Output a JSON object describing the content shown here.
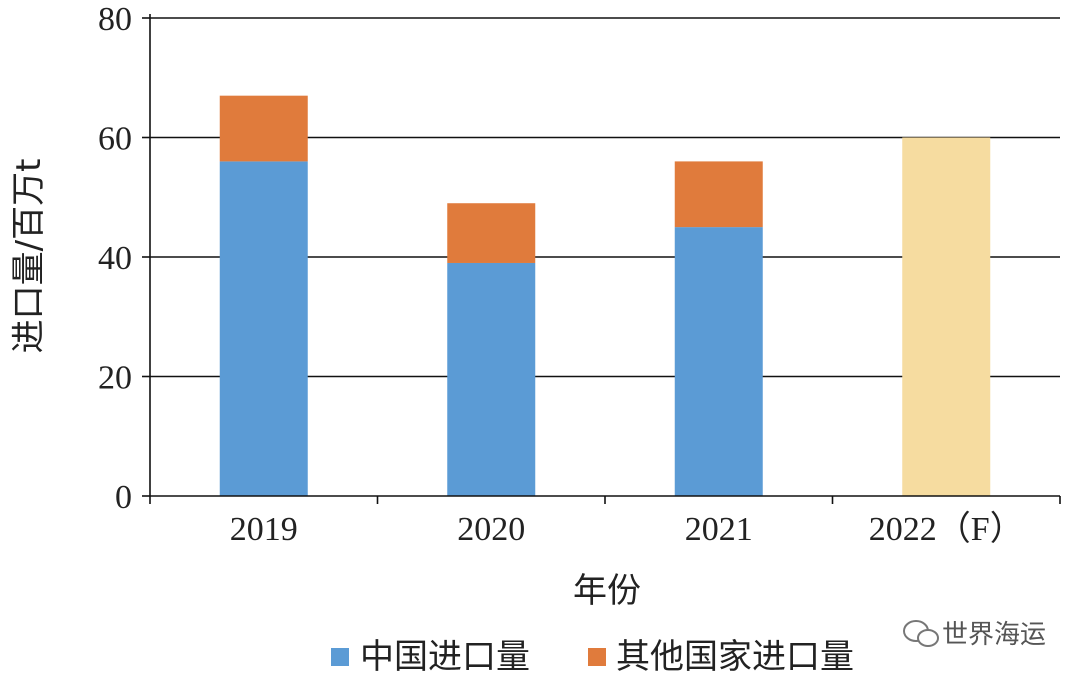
{
  "chart_data": {
    "type": "bar",
    "stacked": true,
    "categories": [
      "2019",
      "2020",
      "2021",
      "2022（F）"
    ],
    "series": [
      {
        "name": "中国进口量",
        "values": [
          56,
          39,
          45,
          null
        ],
        "color": "#5b9bd5"
      },
      {
        "name": "其他国家进口量",
        "values": [
          11,
          10,
          11,
          null
        ],
        "color": "#e07b3c"
      },
      {
        "name": "",
        "values": [
          null,
          null,
          null,
          60
        ],
        "color": "#f6dca0"
      }
    ],
    "title": "",
    "xlabel": "年份",
    "ylabel": "进口量/百万t",
    "ylim": [
      0,
      80
    ],
    "yticks": [
      "0",
      "20",
      "40",
      "60",
      "80"
    ],
    "grid": true,
    "legend_position": "bottom"
  },
  "watermark": {
    "text": "世界海运",
    "icon": "wechat-icon"
  }
}
